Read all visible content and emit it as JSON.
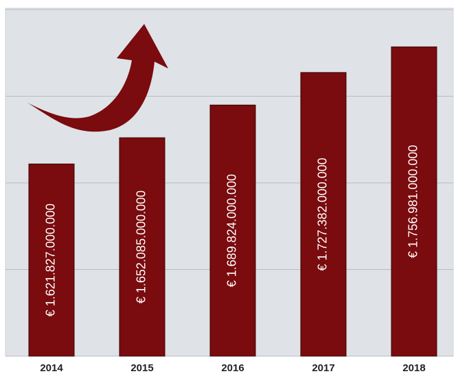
{
  "chart_data": {
    "type": "bar",
    "categories": [
      "2014",
      "2015",
      "2016",
      "2017",
      "2018"
    ],
    "values": [
      1621827000000,
      1652085000000,
      1689824000000,
      1727382000000,
      1756981000000
    ],
    "value_labels": [
      "€ 1.621.827.000.000",
      "€ 1.652.085.000.000",
      "€ 1.689.824.000.000",
      "€ 1.727.382.000.000",
      "€ 1.756.981.000.000"
    ],
    "color": "#7a0b0e",
    "ylim": [
      1400000000000,
      1800000000000
    ],
    "yticks": [
      1400000000000,
      1500000000000,
      1600000000000,
      1700000000000,
      1800000000000
    ],
    "grid": true
  }
}
